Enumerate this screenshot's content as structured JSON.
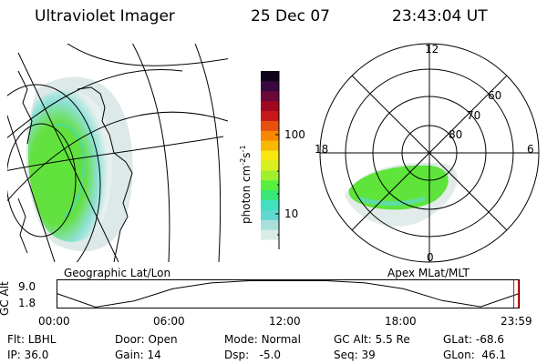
{
  "header": {
    "instrument": "Ultraviolet Imager",
    "date": "25 Dec 07",
    "time": "23:43:04 UT"
  },
  "left_panel": {
    "caption": "Geographic Lat/Lon"
  },
  "right_panel": {
    "caption": "Apex MLat/MLT",
    "mlt_labels": [
      "12",
      "18",
      "6",
      "0"
    ],
    "lat_labels": [
      "60",
      "70",
      "80"
    ]
  },
  "colorbar": {
    "title": "photon cm",
    "exp1": "-2",
    "mid": "s",
    "exp2": "-1",
    "tick_labels": [
      "100",
      "10"
    ],
    "colors": [
      "#ffffff",
      "#d8ece8",
      "#a8e0dc",
      "#5fd8d0",
      "#40e0c0",
      "#38e878",
      "#58f040",
      "#a0f030",
      "#d8f020",
      "#f8e810",
      "#f8b800",
      "#f88800",
      "#e85010",
      "#c81818",
      "#a00820",
      "#6a0838",
      "#3a0840",
      "#100418"
    ]
  },
  "timeline": {
    "ylabel": "GC Alt",
    "y_ticks": [
      "9.0",
      "1.8"
    ],
    "x_ticks": [
      "00:00",
      "06:00",
      "12:00",
      "18:00",
      "23:59"
    ],
    "chart_data": {
      "type": "line",
      "xlabel": "",
      "ylabel": "GC Alt",
      "x_hours": [
        0,
        2,
        4,
        6,
        8,
        10,
        12,
        14,
        16,
        18,
        20,
        22,
        23.98
      ],
      "y": [
        5.5,
        1.8,
        3.5,
        6.8,
        8.4,
        9.0,
        9.0,
        9.0,
        8.4,
        6.8,
        3.6,
        1.9,
        5.5
      ],
      "ylim": [
        1.8,
        9.0
      ],
      "xlim": [
        0,
        24
      ],
      "marker_hour": 23.72
    }
  },
  "info": {
    "row1": [
      {
        "label": "Flt:",
        "value": "LBHL"
      },
      {
        "label": "Door:",
        "value": "Open"
      },
      {
        "label": "Mode:",
        "value": "Normal"
      },
      {
        "label": "GC Alt:",
        "value": "5.5 Re"
      },
      {
        "label": "GLat:",
        "value": "-68.6"
      }
    ],
    "row2": [
      {
        "label": "IP:",
        "value": "36.0"
      },
      {
        "label": "Gain:",
        "value": "14"
      },
      {
        "label": "Dsp:",
        "value": "-5.0"
      },
      {
        "label": "Seq:",
        "value": "39"
      },
      {
        "label": "GLon:",
        "value": "46.1"
      }
    ]
  },
  "colors": {
    "aurora_green": "#5ee43a",
    "aurora_cyan": "#5fd8d0",
    "marker_red": "#d01010"
  }
}
